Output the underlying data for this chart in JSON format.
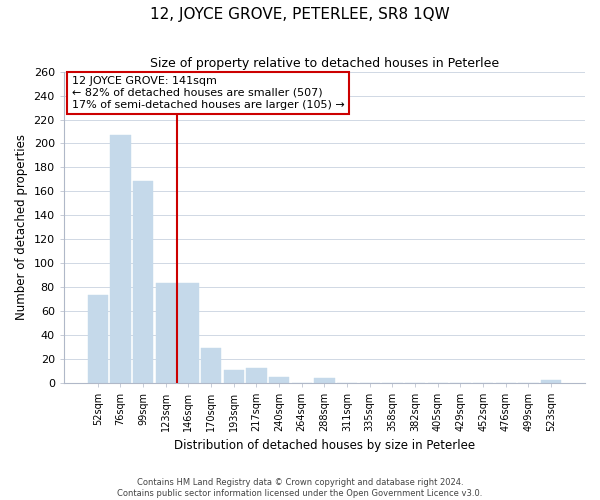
{
  "title": "12, JOYCE GROVE, PETERLEE, SR8 1QW",
  "subtitle": "Size of property relative to detached houses in Peterlee",
  "xlabel": "Distribution of detached houses by size in Peterlee",
  "ylabel": "Number of detached properties",
  "bin_labels": [
    "52sqm",
    "76sqm",
    "99sqm",
    "123sqm",
    "146sqm",
    "170sqm",
    "193sqm",
    "217sqm",
    "240sqm",
    "264sqm",
    "288sqm",
    "311sqm",
    "335sqm",
    "358sqm",
    "382sqm",
    "405sqm",
    "429sqm",
    "452sqm",
    "476sqm",
    "499sqm",
    "523sqm"
  ],
  "bar_values": [
    73,
    207,
    169,
    83,
    83,
    29,
    11,
    12,
    5,
    0,
    4,
    0,
    0,
    0,
    0,
    0,
    0,
    0,
    0,
    0,
    2
  ],
  "bar_color": "#c5d9ea",
  "vline_color": "#cc0000",
  "vline_index": 4,
  "annotation_title": "12 JOYCE GROVE: 141sqm",
  "annotation_line1": "← 82% of detached houses are smaller (507)",
  "annotation_line2": "17% of semi-detached houses are larger (105) →",
  "annotation_box_color": "#ffffff",
  "annotation_box_edge": "#cc0000",
  "ylim": [
    0,
    260
  ],
  "yticks": [
    0,
    20,
    40,
    60,
    80,
    100,
    120,
    140,
    160,
    180,
    200,
    220,
    240,
    260
  ],
  "footer_line1": "Contains HM Land Registry data © Crown copyright and database right 2024.",
  "footer_line2": "Contains public sector information licensed under the Open Government Licence v3.0.",
  "figsize": [
    6.0,
    5.0
  ],
  "dpi": 100
}
